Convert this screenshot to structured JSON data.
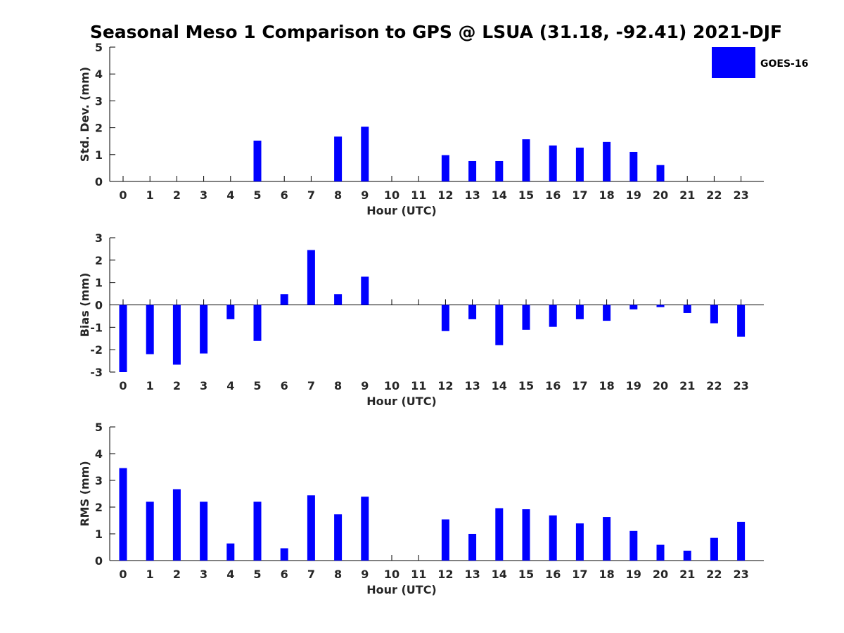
{
  "chart_data": {
    "title": "Seasonal Meso 1 Comparison to GPS @ LSUA (31.18, -92.41) 2021-DJF",
    "legend": {
      "label": "GOES-16",
      "color": "#0000ff",
      "position": "top-right"
    },
    "panels": [
      {
        "type": "bar",
        "ylabel": "Std. Dev. (mm)",
        "xlabel": "Hour (UTC)",
        "categories": [
          "0",
          "1",
          "2",
          "3",
          "4",
          "5",
          "6",
          "7",
          "8",
          "9",
          "10",
          "11",
          "12",
          "13",
          "14",
          "15",
          "16",
          "17",
          "18",
          "19",
          "20",
          "21",
          "22",
          "23"
        ],
        "ylim": [
          0,
          5
        ],
        "yticks": [
          0,
          1,
          2,
          3,
          4,
          5
        ],
        "series": [
          {
            "name": "GOES-16",
            "values": [
              null,
              null,
              null,
              null,
              null,
              1.52,
              null,
              null,
              1.67,
              2.04,
              null,
              null,
              0.98,
              0.76,
              0.76,
              1.57,
              1.34,
              1.26,
              1.47,
              1.1,
              0.61,
              null,
              null,
              null
            ]
          }
        ]
      },
      {
        "type": "bar",
        "ylabel": "Bias (mm)",
        "xlabel": "Hour (UTC)",
        "categories": [
          "0",
          "1",
          "2",
          "3",
          "4",
          "5",
          "6",
          "7",
          "8",
          "9",
          "10",
          "11",
          "12",
          "13",
          "14",
          "15",
          "16",
          "17",
          "18",
          "19",
          "20",
          "21",
          "22",
          "23"
        ],
        "ylim": [
          -3,
          3
        ],
        "yticks": [
          -3,
          -2,
          -1,
          0,
          1,
          2,
          3
        ],
        "series": [
          {
            "name": "GOES-16",
            "values": [
              -3.0,
              -2.2,
              -2.67,
              -2.17,
              -0.64,
              -1.61,
              0.48,
              2.45,
              0.48,
              1.26,
              null,
              null,
              -1.17,
              -0.64,
              -1.8,
              -1.11,
              -0.98,
              -0.64,
              -0.71,
              -0.2,
              -0.1,
              -0.36,
              -0.82,
              -1.42
            ]
          }
        ]
      },
      {
        "type": "bar",
        "ylabel": "RMS (mm)",
        "xlabel": "Hour (UTC)",
        "categories": [
          "0",
          "1",
          "2",
          "3",
          "4",
          "5",
          "6",
          "7",
          "8",
          "9",
          "10",
          "11",
          "12",
          "13",
          "14",
          "15",
          "16",
          "17",
          "18",
          "19",
          "20",
          "21",
          "22",
          "23"
        ],
        "ylim": [
          0,
          5
        ],
        "yticks": [
          0,
          1,
          2,
          3,
          4,
          5
        ],
        "series": [
          {
            "name": "GOES-16",
            "values": [
              3.46,
              2.2,
              2.67,
              2.2,
              0.64,
              2.2,
              0.46,
              2.44,
              1.73,
              2.39,
              null,
              null,
              1.54,
              1.0,
              1.96,
              1.92,
              1.69,
              1.39,
              1.63,
              1.11,
              0.59,
              0.37,
              0.85,
              1.45
            ]
          }
        ]
      }
    ]
  }
}
